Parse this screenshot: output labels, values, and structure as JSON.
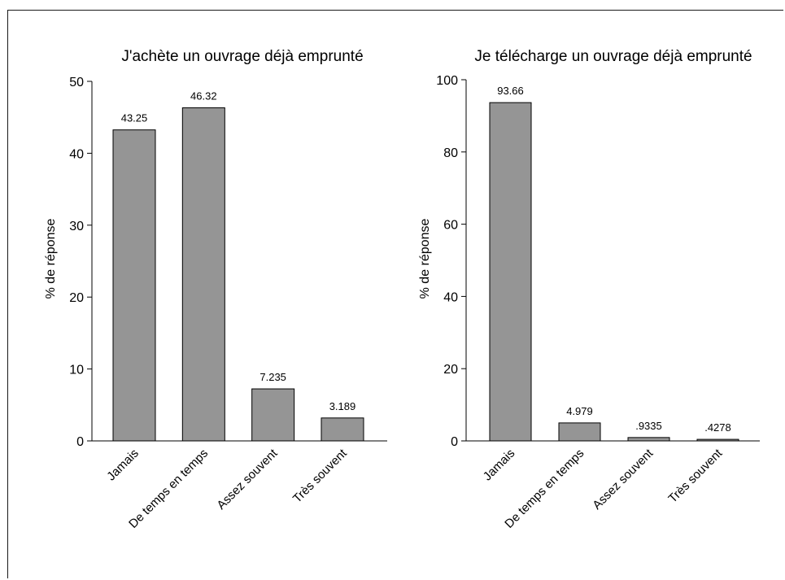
{
  "chart_data": [
    {
      "type": "bar",
      "title": "J'achète un ouvrage déjà emprunté",
      "ylabel": "% de réponse",
      "xlabel": "",
      "categories": [
        "Jamais",
        "De temps en temps",
        "Assez souvent",
        "Très souvent"
      ],
      "values": [
        43.25,
        46.32,
        7.235,
        3.189
      ],
      "value_labels": [
        "43.25",
        "46.32",
        "7.235",
        "3.189"
      ],
      "ylim": [
        0,
        50
      ],
      "yticks": [
        0,
        10,
        20,
        30,
        40,
        50
      ],
      "bar_color": "#959595",
      "grid": false
    },
    {
      "type": "bar",
      "title": "Je télécharge un ouvrage déjà emprunté",
      "ylabel": "% de réponse",
      "xlabel": "",
      "categories": [
        "Jamais",
        "De temps en temps",
        "Assez souvent",
        "Très souvent"
      ],
      "values": [
        93.66,
        4.979,
        0.9335,
        0.4278
      ],
      "value_labels": [
        "93.66",
        "4.979",
        ".9335",
        ".4278"
      ],
      "ylim": [
        0,
        100
      ],
      "yticks": [
        0,
        20,
        40,
        60,
        80,
        100
      ],
      "bar_color": "#959595",
      "grid": false
    }
  ]
}
